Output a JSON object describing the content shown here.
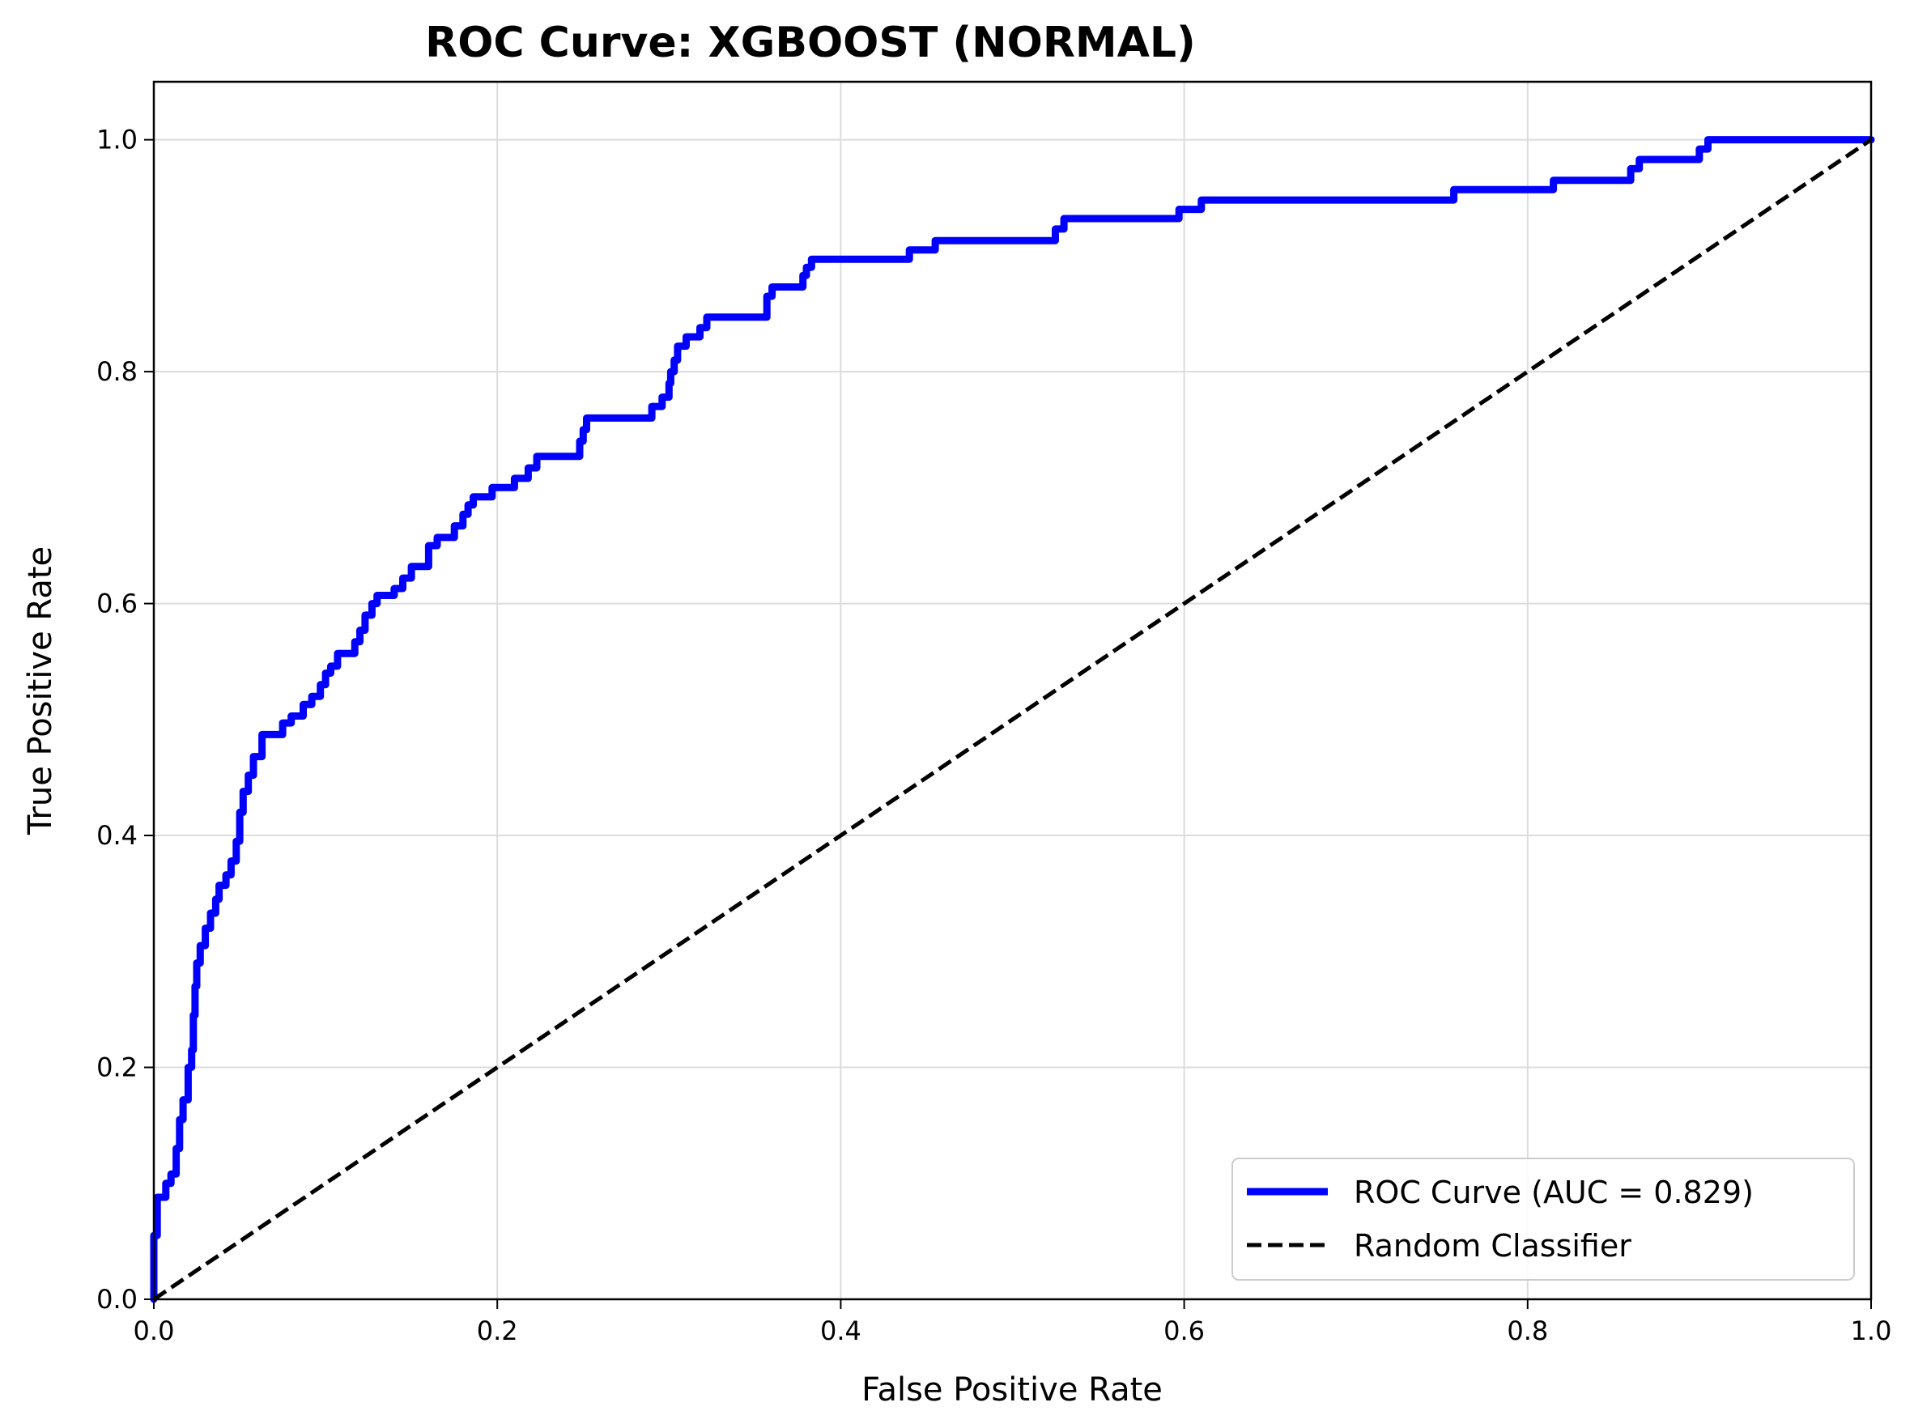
{
  "chart_data": {
    "type": "line",
    "title": "ROC Curve: XGBOOST (NORMAL)",
    "xlabel": "False Positive Rate",
    "ylabel": "True Positive Rate",
    "xlim": [
      0.0,
      1.0
    ],
    "ylim": [
      0.0,
      1.05
    ],
    "xticks": [
      "0.0",
      "0.2",
      "0.4",
      "0.6",
      "0.8",
      "1.0"
    ],
    "yticks": [
      "0.0",
      "0.2",
      "0.4",
      "0.6",
      "0.8",
      "1.0"
    ],
    "grid": true,
    "legend_position": "lower-right",
    "series": [
      {
        "name": "ROC Curve (AUC = 0.829)",
        "color": "#0000ff",
        "style": "solid",
        "x": [
          0.0,
          0.0,
          0.002,
          0.002,
          0.007,
          0.007,
          0.01,
          0.01,
          0.013,
          0.013,
          0.015,
          0.015,
          0.017,
          0.017,
          0.02,
          0.02,
          0.022,
          0.022,
          0.023,
          0.023,
          0.024,
          0.024,
          0.025,
          0.025,
          0.027,
          0.027,
          0.03,
          0.03,
          0.033,
          0.033,
          0.036,
          0.036,
          0.038,
          0.038,
          0.042,
          0.042,
          0.045,
          0.045,
          0.048,
          0.048,
          0.05,
          0.05,
          0.052,
          0.052,
          0.055,
          0.055,
          0.058,
          0.058,
          0.063,
          0.063,
          0.066,
          0.066,
          0.075,
          0.075,
          0.08,
          0.08,
          0.087,
          0.087,
          0.092,
          0.092,
          0.097,
          0.097,
          0.1,
          0.1,
          0.103,
          0.103,
          0.107,
          0.107,
          0.117,
          0.117,
          0.12,
          0.12,
          0.123,
          0.123,
          0.127,
          0.127,
          0.13,
          0.13,
          0.14,
          0.14,
          0.145,
          0.145,
          0.15,
          0.15,
          0.16,
          0.16,
          0.165,
          0.165,
          0.175,
          0.175,
          0.18,
          0.18,
          0.183,
          0.183,
          0.186,
          0.186,
          0.197,
          0.197,
          0.21,
          0.21,
          0.218,
          0.218,
          0.223,
          0.223,
          0.248,
          0.248,
          0.25,
          0.25,
          0.252,
          0.252,
          0.29,
          0.29,
          0.296,
          0.296,
          0.3,
          0.3,
          0.301,
          0.301,
          0.303,
          0.303,
          0.305,
          0.305,
          0.31,
          0.31,
          0.318,
          0.318,
          0.322,
          0.322,
          0.357,
          0.357,
          0.36,
          0.36,
          0.378,
          0.378,
          0.38,
          0.38,
          0.383,
          0.383,
          0.44,
          0.44,
          0.455,
          0.455,
          0.525,
          0.525,
          0.53,
          0.53,
          0.597,
          0.597,
          0.61,
          0.61,
          0.757,
          0.757,
          0.815,
          0.815,
          0.86,
          0.86,
          0.865,
          0.865,
          0.9,
          0.9,
          0.905,
          0.905,
          1.0
        ],
        "y": [
          0.0,
          0.055,
          0.055,
          0.088,
          0.088,
          0.1,
          0.1,
          0.108,
          0.108,
          0.13,
          0.13,
          0.155,
          0.155,
          0.172,
          0.172,
          0.2,
          0.2,
          0.215,
          0.215,
          0.245,
          0.245,
          0.27,
          0.27,
          0.29,
          0.29,
          0.305,
          0.305,
          0.32,
          0.32,
          0.333,
          0.333,
          0.345,
          0.345,
          0.357,
          0.357,
          0.366,
          0.366,
          0.378,
          0.378,
          0.395,
          0.395,
          0.42,
          0.42,
          0.438,
          0.438,
          0.452,
          0.452,
          0.468,
          0.468,
          0.487,
          0.487,
          0.487,
          0.487,
          0.497,
          0.497,
          0.503,
          0.503,
          0.513,
          0.513,
          0.52,
          0.52,
          0.53,
          0.53,
          0.54,
          0.54,
          0.546,
          0.546,
          0.557,
          0.557,
          0.567,
          0.567,
          0.577,
          0.577,
          0.59,
          0.59,
          0.6,
          0.6,
          0.607,
          0.607,
          0.613,
          0.613,
          0.622,
          0.622,
          0.632,
          0.632,
          0.65,
          0.65,
          0.657,
          0.657,
          0.667,
          0.667,
          0.677,
          0.677,
          0.685,
          0.685,
          0.692,
          0.692,
          0.7,
          0.7,
          0.708,
          0.708,
          0.717,
          0.717,
          0.727,
          0.727,
          0.74,
          0.74,
          0.75,
          0.75,
          0.76,
          0.76,
          0.77,
          0.77,
          0.778,
          0.778,
          0.79,
          0.79,
          0.8,
          0.8,
          0.81,
          0.81,
          0.822,
          0.822,
          0.83,
          0.83,
          0.838,
          0.838,
          0.847,
          0.847,
          0.865,
          0.865,
          0.873,
          0.873,
          0.883,
          0.883,
          0.89,
          0.89,
          0.897,
          0.897,
          0.905,
          0.905,
          0.913,
          0.913,
          0.923,
          0.923,
          0.932,
          0.932,
          0.94,
          0.94,
          0.948,
          0.948,
          0.957,
          0.957,
          0.965,
          0.965,
          0.975,
          0.975,
          0.983,
          0.983,
          0.992,
          0.992,
          1.0,
          1.0
        ]
      },
      {
        "name": "Random Classifier",
        "color": "#000000",
        "style": "dashed",
        "x": [
          0.0,
          1.0
        ],
        "y": [
          0.0,
          1.0
        ]
      }
    ]
  }
}
